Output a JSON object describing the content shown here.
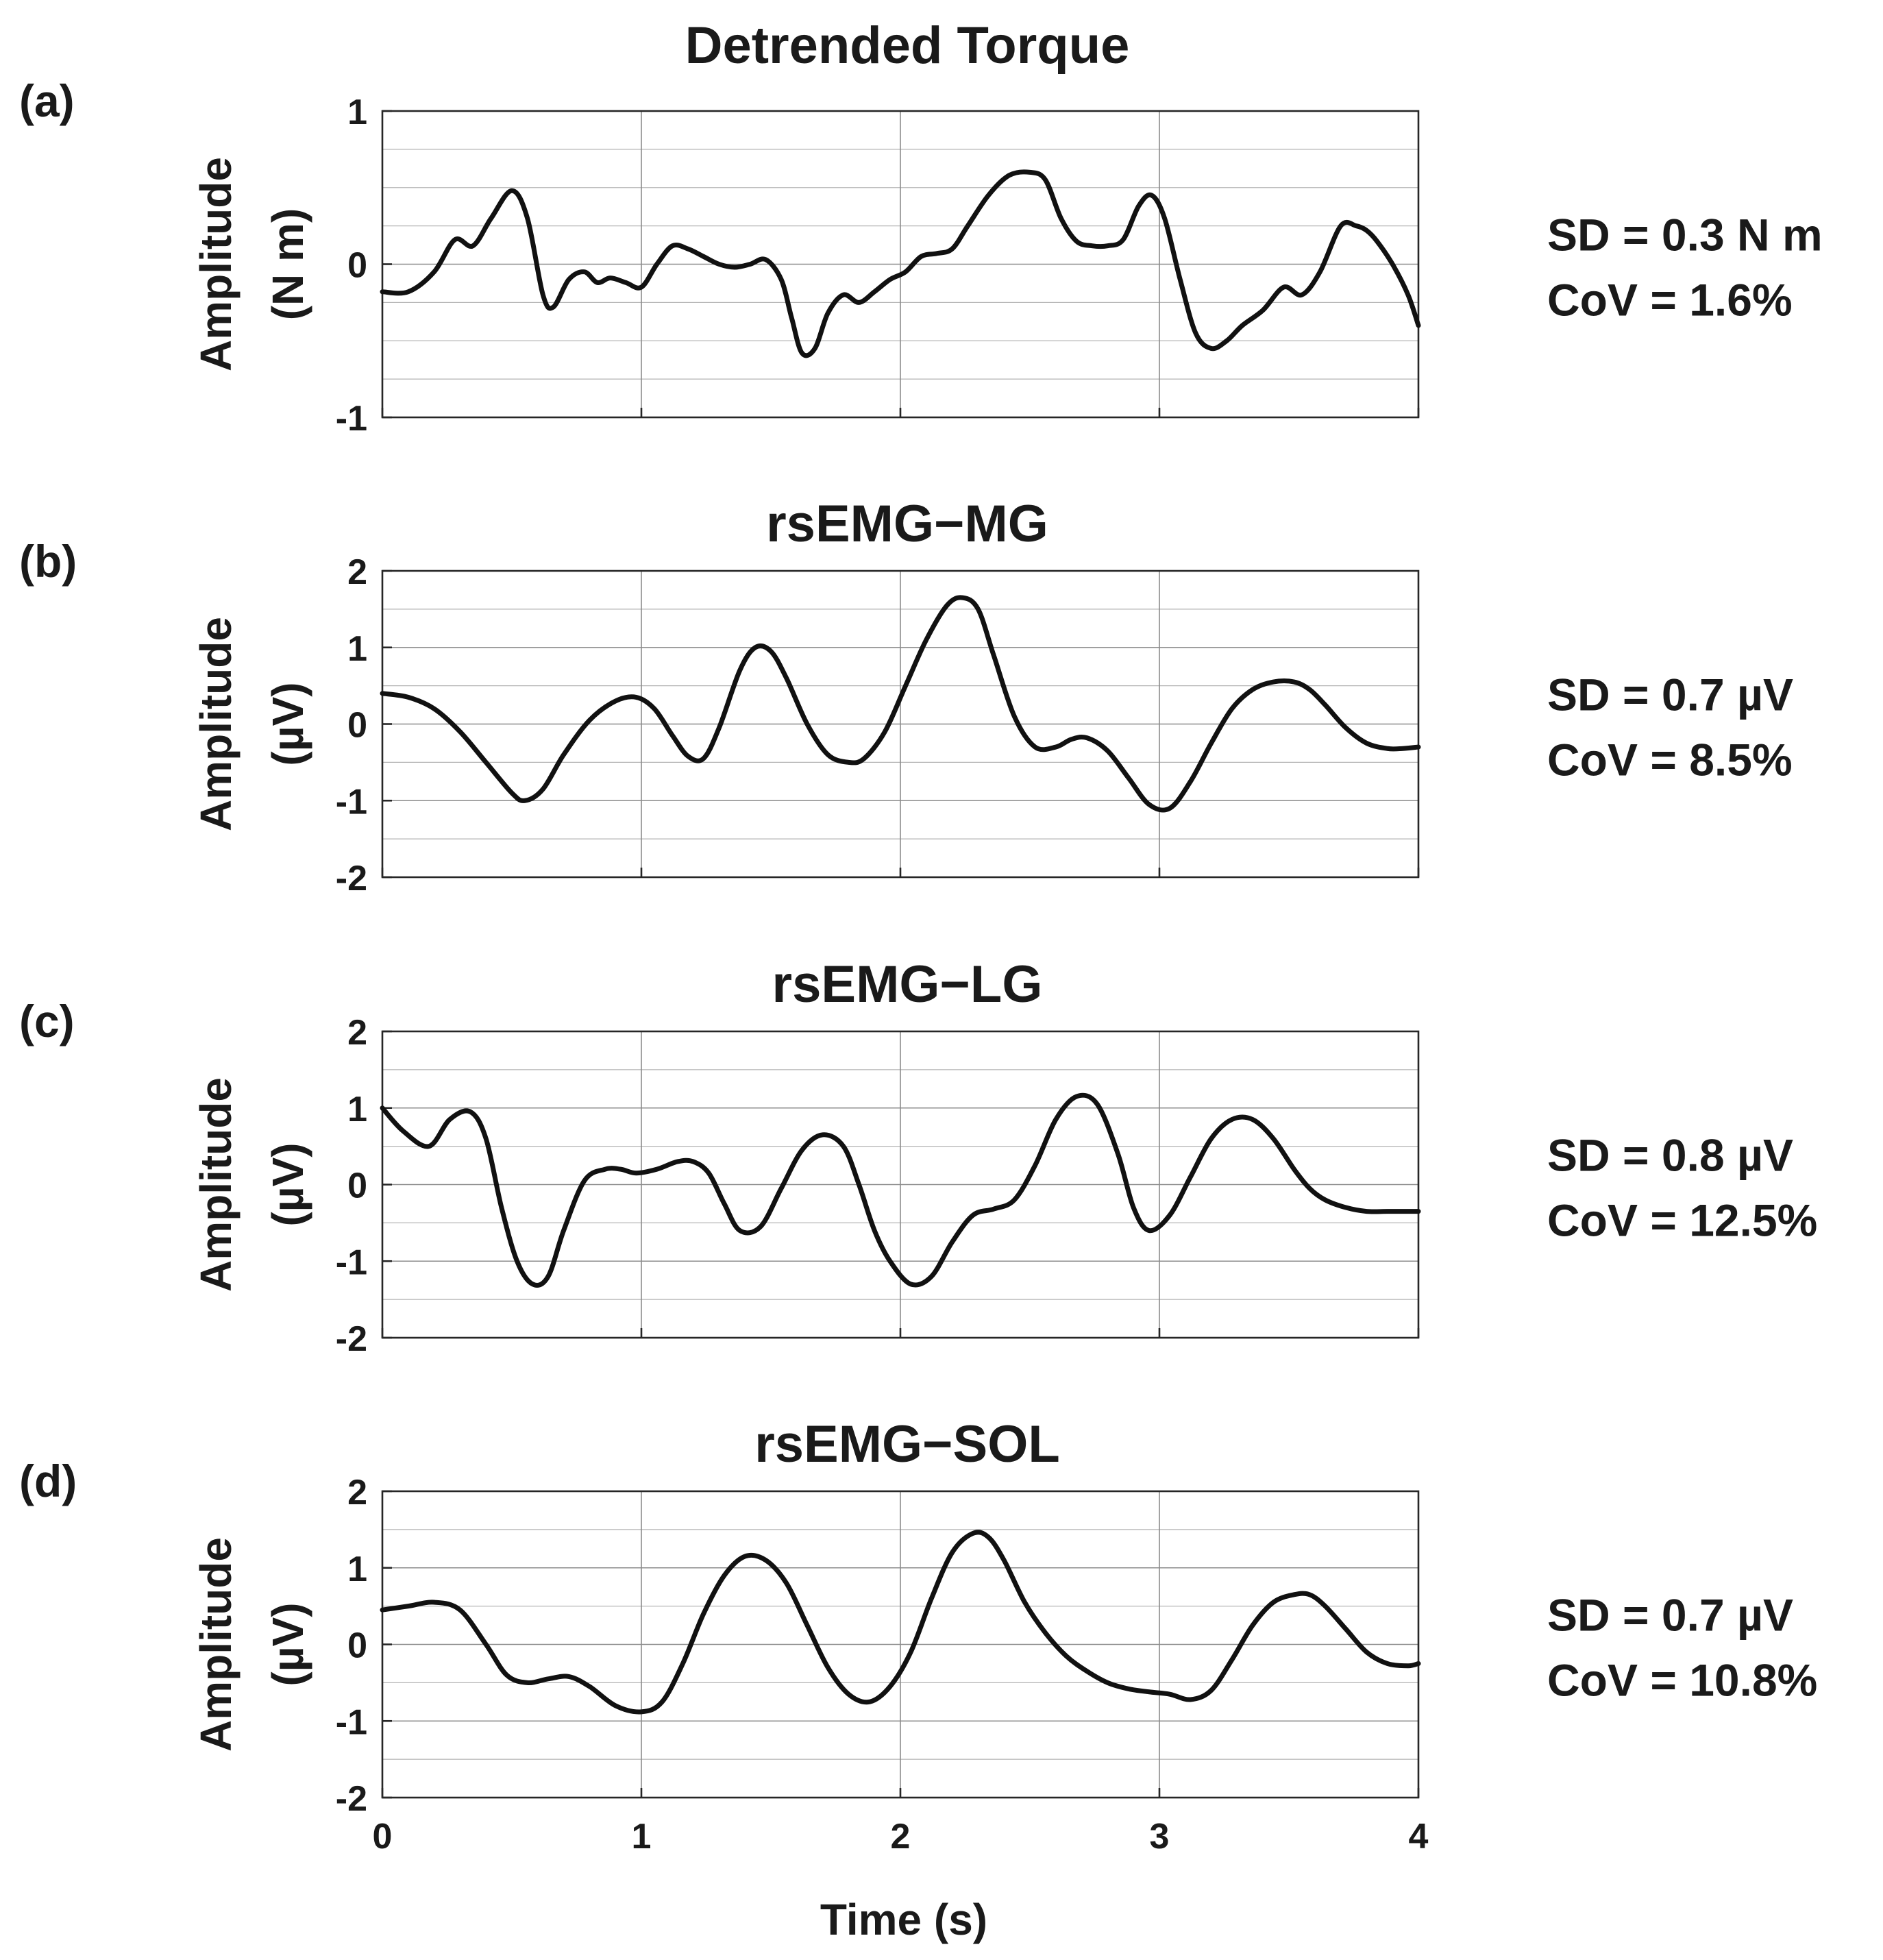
{
  "chart_data": [
    {
      "type": "line",
      "panel_label": "(a)",
      "title": "Detrended Torque",
      "ylabel_line1": "Amplitude",
      "ylabel_line2": "(N m)",
      "xlabel": "",
      "xlim": [
        0,
        4
      ],
      "ylim": [
        -1,
        1
      ],
      "yticks": [
        -1,
        0,
        1
      ],
      "ytick_labels": [
        "-1",
        "0",
        "1"
      ],
      "xticks": [
        0,
        1,
        2,
        3,
        4
      ],
      "xtick_labels": [],
      "grid": true,
      "minor_y_step": 0.25,
      "stat_sd": "SD = 0.3 N m",
      "stat_cov": "CoV = 1.6%",
      "x": [
        0,
        0.1,
        0.2,
        0.28,
        0.35,
        0.42,
        0.5,
        0.56,
        0.62,
        0.66,
        0.72,
        0.78,
        0.83,
        0.88,
        0.94,
        1.0,
        1.06,
        1.12,
        1.18,
        1.24,
        1.3,
        1.36,
        1.42,
        1.48,
        1.54,
        1.58,
        1.62,
        1.67,
        1.72,
        1.78,
        1.84,
        1.9,
        1.96,
        2.02,
        2.08,
        2.14,
        2.2,
        2.26,
        2.34,
        2.42,
        2.5,
        2.56,
        2.62,
        2.68,
        2.74,
        2.8,
        2.86,
        2.92,
        2.97,
        3.02,
        3.08,
        3.14,
        3.2,
        3.26,
        3.32,
        3.4,
        3.48,
        3.55,
        3.62,
        3.7,
        3.76,
        3.8,
        3.84,
        3.9,
        3.96,
        4.0
      ],
      "y": [
        -0.18,
        -0.18,
        -0.05,
        0.16,
        0.12,
        0.3,
        0.48,
        0.3,
        -0.2,
        -0.28,
        -0.1,
        -0.05,
        -0.12,
        -0.09,
        -0.12,
        -0.15,
        0.0,
        0.12,
        0.1,
        0.05,
        0.0,
        -0.02,
        0.0,
        0.03,
        -0.1,
        -0.35,
        -0.58,
        -0.55,
        -0.32,
        -0.2,
        -0.25,
        -0.18,
        -0.1,
        -0.05,
        0.05,
        0.07,
        0.1,
        0.25,
        0.45,
        0.58,
        0.6,
        0.55,
        0.3,
        0.15,
        0.12,
        0.12,
        0.16,
        0.38,
        0.45,
        0.3,
        -0.1,
        -0.45,
        -0.55,
        -0.5,
        -0.4,
        -0.3,
        -0.15,
        -0.2,
        -0.05,
        0.25,
        0.25,
        0.22,
        0.15,
        0.0,
        -0.2,
        -0.4
      ]
    },
    {
      "type": "line",
      "panel_label": "(b)",
      "title": "rsEMG−MG",
      "ylabel_line1": "Amplitude",
      "ylabel_line2": "(µV)",
      "xlabel": "",
      "xlim": [
        0,
        4
      ],
      "ylim": [
        -2,
        2
      ],
      "yticks": [
        -2,
        -1,
        0,
        1,
        2
      ],
      "ytick_labels": [
        "-2",
        "-1",
        "0",
        "1",
        "2"
      ],
      "xticks": [
        0,
        1,
        2,
        3,
        4
      ],
      "xtick_labels": [],
      "grid": true,
      "minor_y_step": 0.5,
      "stat_sd": "SD = 0.7 µV",
      "stat_cov": "CoV = 8.5%",
      "x": [
        0,
        0.1,
        0.2,
        0.3,
        0.4,
        0.5,
        0.55,
        0.62,
        0.7,
        0.8,
        0.9,
        0.98,
        1.05,
        1.12,
        1.18,
        1.24,
        1.3,
        1.38,
        1.44,
        1.5,
        1.56,
        1.64,
        1.72,
        1.8,
        1.86,
        1.94,
        2.02,
        2.1,
        2.18,
        2.24,
        2.3,
        2.36,
        2.44,
        2.52,
        2.6,
        2.66,
        2.72,
        2.8,
        2.88,
        2.96,
        3.04,
        3.12,
        3.2,
        3.28,
        3.36,
        3.44,
        3.52,
        3.58,
        3.64,
        3.72,
        3.8,
        3.88,
        3.94,
        4.0
      ],
      "y": [
        0.4,
        0.35,
        0.2,
        -0.1,
        -0.5,
        -0.9,
        -1.0,
        -0.85,
        -0.4,
        0.05,
        0.3,
        0.35,
        0.2,
        -0.15,
        -0.42,
        -0.45,
        -0.05,
        0.7,
        1.0,
        0.95,
        0.6,
        0.0,
        -0.4,
        -0.5,
        -0.45,
        -0.1,
        0.5,
        1.1,
        1.55,
        1.65,
        1.5,
        0.9,
        0.1,
        -0.3,
        -0.3,
        -0.2,
        -0.18,
        -0.35,
        -0.7,
        -1.05,
        -1.1,
        -0.75,
        -0.25,
        0.2,
        0.45,
        0.55,
        0.55,
        0.45,
        0.25,
        -0.05,
        -0.25,
        -0.32,
        -0.32,
        -0.3
      ]
    },
    {
      "type": "line",
      "panel_label": "(c)",
      "title": "rsEMG−LG",
      "ylabel_line1": "Amplitude",
      "ylabel_line2": "(µV)",
      "xlabel": "",
      "xlim": [
        0,
        4
      ],
      "ylim": [
        -2,
        2
      ],
      "yticks": [
        -2,
        -1,
        0,
        1,
        2
      ],
      "ytick_labels": [
        "-2",
        "-1",
        "0",
        "1",
        "2"
      ],
      "xticks": [
        0,
        1,
        2,
        3,
        4
      ],
      "xtick_labels": [],
      "grid": true,
      "minor_y_step": 0.5,
      "stat_sd": "SD = 0.8 µV",
      "stat_cov": "CoV = 12.5%",
      "x": [
        0,
        0.08,
        0.18,
        0.26,
        0.34,
        0.4,
        0.46,
        0.52,
        0.58,
        0.64,
        0.7,
        0.78,
        0.86,
        0.92,
        0.98,
        1.06,
        1.14,
        1.2,
        1.26,
        1.32,
        1.38,
        1.46,
        1.54,
        1.62,
        1.7,
        1.78,
        1.84,
        1.9,
        1.96,
        2.04,
        2.12,
        2.2,
        2.28,
        2.36,
        2.44,
        2.52,
        2.6,
        2.68,
        2.76,
        2.84,
        2.9,
        2.96,
        3.04,
        3.12,
        3.2,
        3.28,
        3.36,
        3.44,
        3.52,
        3.58,
        3.64,
        3.72,
        3.8,
        3.88,
        3.96,
        4.0
      ],
      "y": [
        1.0,
        0.7,
        0.5,
        0.85,
        0.95,
        0.6,
        -0.3,
        -1.0,
        -1.3,
        -1.2,
        -0.6,
        0.05,
        0.2,
        0.2,
        0.15,
        0.2,
        0.3,
        0.3,
        0.15,
        -0.25,
        -0.6,
        -0.55,
        -0.05,
        0.45,
        0.65,
        0.5,
        0.0,
        -0.6,
        -1.0,
        -1.3,
        -1.2,
        -0.75,
        -0.4,
        -0.32,
        -0.2,
        0.25,
        0.85,
        1.15,
        1.05,
        0.4,
        -0.3,
        -0.6,
        -0.4,
        0.1,
        0.6,
        0.85,
        0.85,
        0.6,
        0.2,
        -0.05,
        -0.2,
        -0.3,
        -0.35,
        -0.35,
        -0.35,
        -0.35
      ]
    },
    {
      "type": "line",
      "panel_label": "(d)",
      "title": "rsEMG−SOL",
      "ylabel_line1": "Amplitude",
      "ylabel_line2": "(µV)",
      "xlabel": "Time (s)",
      "xlim": [
        0,
        4
      ],
      "ylim": [
        -2,
        2
      ],
      "yticks": [
        -2,
        -1,
        0,
        1,
        2
      ],
      "ytick_labels": [
        "-2",
        "-1",
        "0",
        "1",
        "2"
      ],
      "xticks": [
        0,
        1,
        2,
        3,
        4
      ],
      "xtick_labels": [
        "0",
        "1",
        "2",
        "3",
        "4"
      ],
      "grid": true,
      "minor_y_step": 0.5,
      "stat_sd": "SD = 0.7 µV",
      "stat_cov": "CoV = 10.8%",
      "x": [
        0,
        0.1,
        0.2,
        0.3,
        0.4,
        0.48,
        0.56,
        0.64,
        0.72,
        0.8,
        0.9,
        1.0,
        1.08,
        1.16,
        1.24,
        1.32,
        1.4,
        1.48,
        1.56,
        1.64,
        1.72,
        1.8,
        1.88,
        1.96,
        2.04,
        2.12,
        2.2,
        2.28,
        2.34,
        2.4,
        2.48,
        2.56,
        2.64,
        2.72,
        2.8,
        2.88,
        2.96,
        3.04,
        3.12,
        3.2,
        3.28,
        3.36,
        3.44,
        3.52,
        3.58,
        3.64,
        3.72,
        3.8,
        3.88,
        3.96,
        4.0
      ],
      "y": [
        0.45,
        0.5,
        0.55,
        0.45,
        0.0,
        -0.4,
        -0.5,
        -0.45,
        -0.42,
        -0.55,
        -0.8,
        -0.88,
        -0.75,
        -0.25,
        0.4,
        0.9,
        1.15,
        1.1,
        0.8,
        0.25,
        -0.3,
        -0.65,
        -0.75,
        -0.55,
        -0.1,
        0.6,
        1.2,
        1.45,
        1.4,
        1.1,
        0.55,
        0.15,
        -0.15,
        -0.35,
        -0.5,
        -0.58,
        -0.62,
        -0.65,
        -0.72,
        -0.6,
        -0.2,
        0.25,
        0.55,
        0.65,
        0.65,
        0.5,
        0.2,
        -0.1,
        -0.25,
        -0.28,
        -0.25
      ]
    }
  ]
}
